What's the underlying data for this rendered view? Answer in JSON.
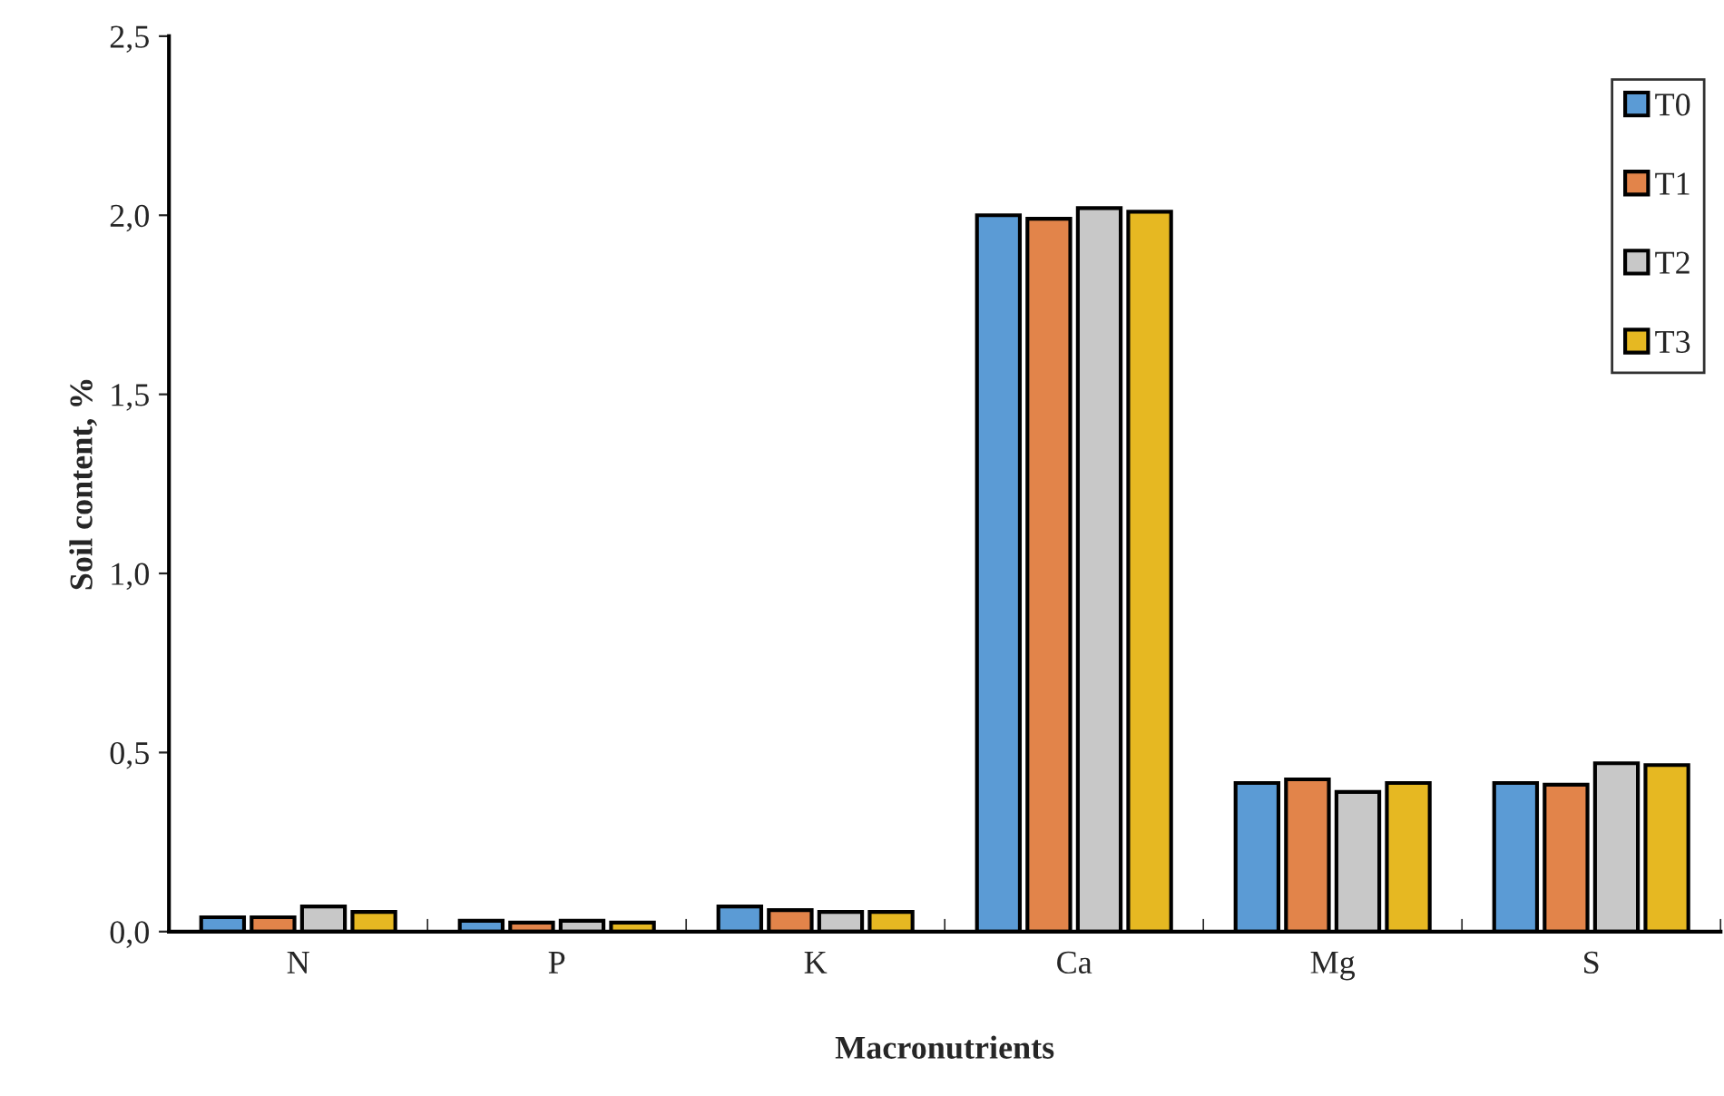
{
  "chart_data": {
    "type": "bar",
    "xlabel": "Macronutrients",
    "ylabel": "Soil content, %",
    "categories": [
      "N",
      "P",
      "K",
      "Ca",
      "Mg",
      "S"
    ],
    "series": [
      {
        "name": "T0",
        "color": "#5b9bd5",
        "values": [
          0.04,
          0.03,
          0.07,
          2.0,
          0.415,
          0.415
        ]
      },
      {
        "name": "T1",
        "color": "#e2844a",
        "values": [
          0.04,
          0.025,
          0.06,
          1.99,
          0.425,
          0.41
        ]
      },
      {
        "name": "T2",
        "color": "#c8c8c8",
        "values": [
          0.07,
          0.03,
          0.055,
          2.02,
          0.39,
          0.47
        ]
      },
      {
        "name": "T3",
        "color": "#e6b822",
        "values": [
          0.055,
          0.025,
          0.055,
          2.01,
          0.415,
          0.465
        ]
      }
    ],
    "ylim": [
      0,
      2.5
    ],
    "yticks": [
      {
        "value": 0,
        "label": "0,0"
      },
      {
        "value": 0.5,
        "label": "0,5"
      },
      {
        "value": 1.0,
        "label": "1,0"
      },
      {
        "value": 1.5,
        "label": "1,5"
      },
      {
        "value": 2.0,
        "label": "2,0"
      },
      {
        "value": 2.5,
        "label": "2,5"
      }
    ],
    "grid": false,
    "legend": "top right"
  }
}
